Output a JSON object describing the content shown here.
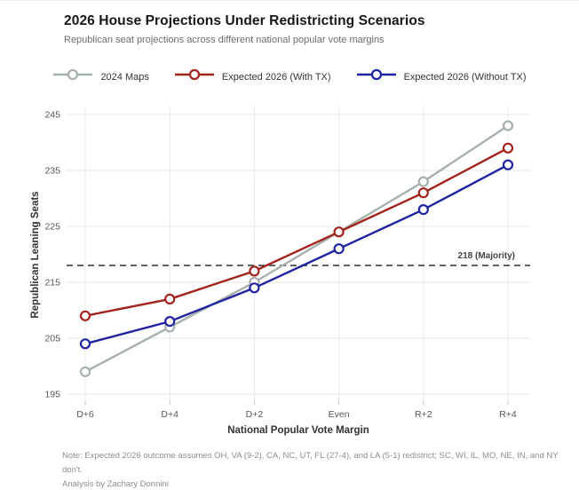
{
  "header": {
    "title": "2026 House Projections Under Redistricting Scenarios",
    "subtitle": "Republican seat projections across different national popular vote margins"
  },
  "chart_data": {
    "type": "line",
    "categories": [
      "D+6",
      "D+4",
      "D+2",
      "Even",
      "R+2",
      "R+4"
    ],
    "series": [
      {
        "name": "2024 Maps",
        "color": "#a6b1aa",
        "values": [
          199,
          207,
          215,
          224,
          233,
          243
        ]
      },
      {
        "name": "Expected 2026 (With TX)",
        "color": "#a3231b",
        "values": [
          209,
          212,
          217,
          224,
          231,
          239
        ]
      },
      {
        "name": "Expected 2026 (Without TX)",
        "color": "#1f23a0",
        "values": [
          204,
          208,
          214,
          221,
          228,
          236
        ]
      }
    ],
    "xlabel": "National Popular Vote Margin",
    "ylabel": "Republican Leaning Seats",
    "ylim": [
      195,
      245
    ],
    "yticks": [
      195,
      205,
      215,
      225,
      235,
      245
    ],
    "grid": true,
    "legend_position": "top",
    "marker": "open-circle",
    "reference_line": {
      "value": 218,
      "label": "218 (Majority)",
      "style": "dashed",
      "color": "#3c3c3c"
    }
  },
  "footnote": {
    "line1": "Note: Expected 2026 outcome assumes OH, VA (9-2), CA, NC, UT, FL (27-4), and LA (5-1) redistrict; SC, WI, IL, MO, NE, IN, and NY don't.",
    "line2": "Analysis by Zachary Donnini"
  }
}
